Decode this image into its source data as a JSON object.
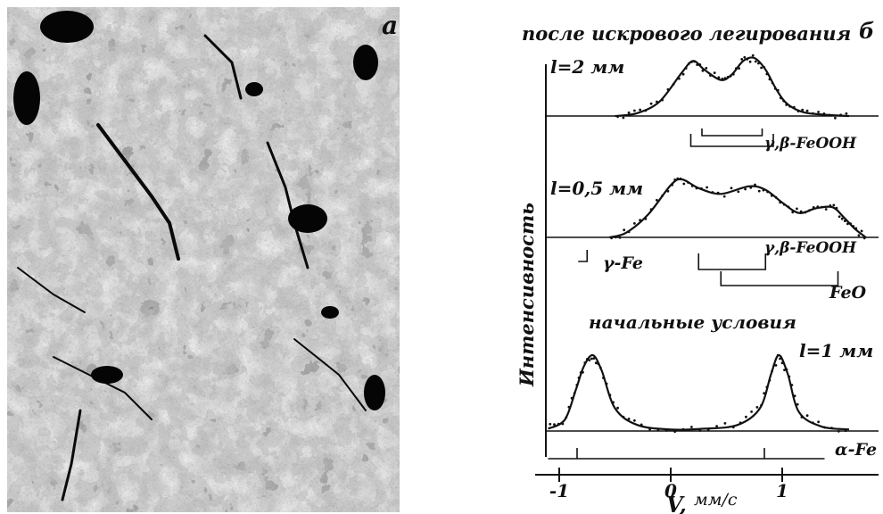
{
  "panel_a": {
    "label": "а"
  },
  "panel_b": {
    "label": "б",
    "title": "после искрового легирования",
    "ylabel": "Интенсивность",
    "spectra": [
      {
        "thickness": "l=2 мм"
      },
      {
        "thickness": "l=0,5 мм"
      },
      {
        "thickness": "l=1 мм",
        "caption": "начальные условия"
      }
    ],
    "phase_labels": {
      "feooh_top": "γ,β-FeOOH",
      "feooh_mid": "γ,β-FeOOH",
      "gamma_fe": "γ-Fe",
      "feo": "FeO",
      "alpha_fe": "α-Fe"
    },
    "x_axis": {
      "label_v": "V,",
      "label_unit": "мм/с",
      "ticks": [
        "-1",
        "0",
        "1"
      ]
    }
  },
  "chart_data": {
    "type": "line",
    "title": "после искрового легирования",
    "xlabel": "V, мм/с",
    "ylabel": "Интенсивность",
    "xlim": [
      -1.2,
      1.8
    ],
    "x_ticks": [
      -1,
      0,
      1
    ],
    "series": [
      {
        "name": "l=2 мм",
        "x": [
          -0.5,
          -0.3,
          -0.1,
          0.1,
          0.2,
          0.3,
          0.45,
          0.55,
          0.65,
          0.75,
          0.85,
          0.95,
          1.05,
          1.2,
          1.4,
          1.6
        ],
        "y": [
          0.0,
          0.05,
          0.25,
          0.75,
          0.95,
          0.8,
          0.62,
          0.72,
          0.95,
          1.0,
          0.8,
          0.45,
          0.2,
          0.06,
          0.02,
          0.0
        ]
      },
      {
        "name": "l=0,5 мм",
        "x": [
          -0.55,
          -0.4,
          -0.2,
          0.0,
          0.1,
          0.25,
          0.45,
          0.7,
          0.85,
          1.0,
          1.15,
          1.3,
          1.45,
          1.55,
          1.65,
          1.75
        ],
        "y": [
          0.0,
          0.08,
          0.4,
          0.9,
          1.0,
          0.85,
          0.75,
          0.88,
          0.82,
          0.6,
          0.42,
          0.5,
          0.52,
          0.35,
          0.15,
          0.0
        ]
      },
      {
        "name": "l=1 мм",
        "x": [
          -1.1,
          -0.95,
          -0.85,
          -0.78,
          -0.7,
          -0.62,
          -0.5,
          -0.3,
          0.0,
          0.3,
          0.6,
          0.8,
          0.9,
          0.97,
          1.05,
          1.15,
          1.35,
          1.6
        ],
        "y": [
          0.03,
          0.15,
          0.55,
          0.85,
          1.0,
          0.8,
          0.3,
          0.08,
          0.02,
          0.03,
          0.08,
          0.3,
          0.75,
          1.0,
          0.75,
          0.25,
          0.06,
          0.02
        ]
      }
    ],
    "markers": {
      "gamma_fe": [
        -0.75
      ],
      "feooh": [
        0.4,
        0.9
      ],
      "feo": [
        0.45,
        1.5
      ],
      "alpha_fe": [
        -0.84,
        0.84
      ]
    }
  }
}
